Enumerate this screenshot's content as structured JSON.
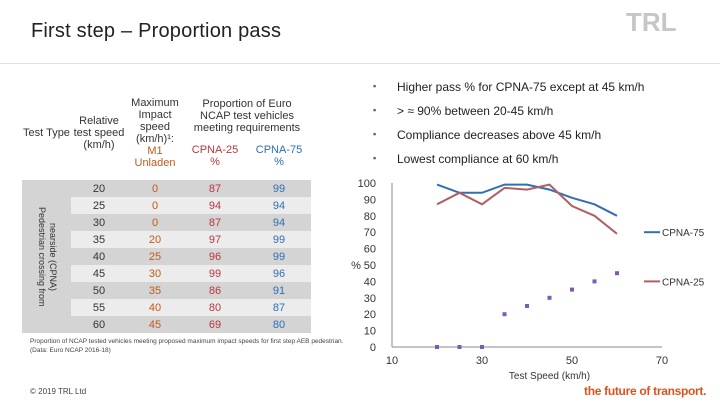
{
  "title": "First step – Proportion pass",
  "logo": "TRL",
  "table": {
    "header_test_type": "Test Type",
    "header_relative_speed": [
      "Relative",
      "test speed",
      "(km/h)"
    ],
    "header_max_speed": [
      "Maximum",
      "Impact",
      "speed",
      "(km/h)¹:"
    ],
    "header_proportion": [
      "Proportion of Euro",
      "NCAP test vehicles",
      "meeting requirements"
    ],
    "sub_m1": [
      "M1",
      "Unladen"
    ],
    "sub_cpna25": [
      "CPNA-25",
      "%"
    ],
    "sub_cpna75": [
      "CPNA-75",
      "%"
    ],
    "side_label": [
      "Pedestrian crossing from",
      "nearside (CPNA)"
    ],
    "rows": [
      {
        "speed": "20",
        "max": "0",
        "c25": "87",
        "c75": "99"
      },
      {
        "speed": "25",
        "max": "0",
        "c25": "94",
        "c75": "94"
      },
      {
        "speed": "30",
        "max": "0",
        "c25": "87",
        "c75": "94"
      },
      {
        "speed": "35",
        "max": "20",
        "c25": "97",
        "c75": "99"
      },
      {
        "speed": "40",
        "max": "25",
        "c25": "96",
        "c75": "99"
      },
      {
        "speed": "45",
        "max": "30",
        "c25": "99",
        "c75": "96"
      },
      {
        "speed": "50",
        "max": "35",
        "c25": "86",
        "c75": "91"
      },
      {
        "speed": "55",
        "max": "40",
        "c25": "80",
        "c75": "87"
      },
      {
        "speed": "60",
        "max": "45",
        "c25": "69",
        "c75": "80"
      }
    ]
  },
  "footnote": "Proportion of NCAP tested vehicles meeting proposed maximum impact speeds for first step AEB pedestrian. (Data: Euro NCAP 2016-18)",
  "bullets": [
    "Higher pass % for CPNA-75 except at 45 km/h",
    "> ≈ 90%  between 20-45 km/h",
    "Compliance decreases above 45 km/h",
    "Lowest compliance at 60 km/h"
  ],
  "bullet_symbol": "▪",
  "copyright": "© 2019 TRL Ltd",
  "tagline": "the future of transport.",
  "colors": {
    "cpna75": "#2f6fb5",
    "cpna25": "#b06065",
    "markers": "#7b5bb5",
    "tagline": "#d9541c"
  },
  "chart_data": {
    "type": "line",
    "xlabel": "Test Speed (km/h)",
    "ylabel": "%",
    "xlim": [
      10,
      70
    ],
    "ylim": [
      0,
      100
    ],
    "x_ticks": [
      10,
      30,
      50,
      70
    ],
    "y_ticks": [
      0,
      10,
      20,
      30,
      40,
      50,
      60,
      70,
      80,
      90,
      100
    ],
    "x": [
      20,
      25,
      30,
      35,
      40,
      45,
      50,
      55,
      60
    ],
    "series": [
      {
        "name": "CPNA-75",
        "values": [
          99,
          94,
          94,
          99,
          99,
          96,
          91,
          87,
          80
        ]
      },
      {
        "name": "CPNA-25",
        "values": [
          87,
          94,
          87,
          97,
          96,
          99,
          86,
          80,
          69
        ]
      },
      {
        "values": [
          0,
          0,
          0,
          20,
          25,
          30,
          35,
          40,
          45
        ]
      }
    ]
  }
}
